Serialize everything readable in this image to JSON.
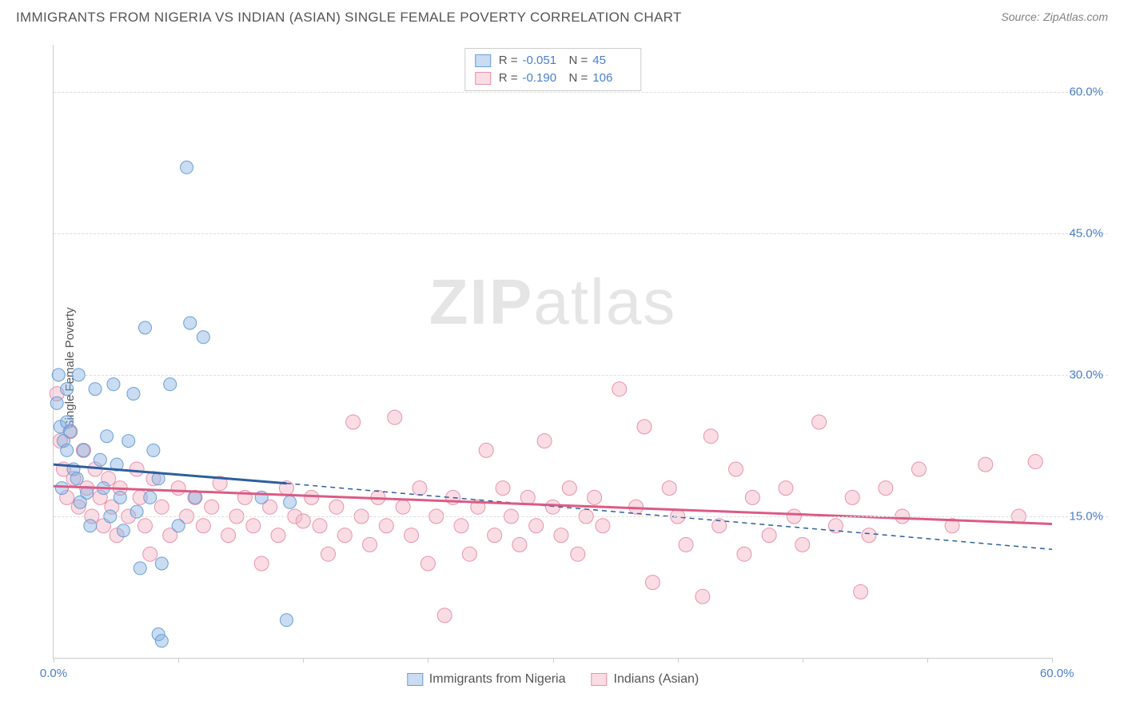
{
  "title": "IMMIGRANTS FROM NIGERIA VS INDIAN (ASIAN) SINGLE FEMALE POVERTY CORRELATION CHART",
  "source_label": "Source:",
  "source_name": "ZipAtlas.com",
  "y_axis_label": "Single Female Poverty",
  "watermark": {
    "bold": "ZIP",
    "light": "atlas"
  },
  "chart": {
    "type": "scatter",
    "xlim": [
      0,
      60
    ],
    "ylim": [
      0,
      65
    ],
    "x_ticks": [
      0,
      7.5,
      15,
      22.5,
      30,
      37.5,
      45,
      52.5,
      60
    ],
    "x_tick_labels": {
      "0": "0.0%",
      "60": "60.0%"
    },
    "y_ticks": [
      15,
      30,
      45,
      60
    ],
    "y_tick_labels": [
      "15.0%",
      "30.0%",
      "45.0%",
      "60.0%"
    ],
    "grid_color": "#dddddd",
    "axis_color": "#cccccc",
    "background_color": "#ffffff",
    "label_color": "#4a7ec9",
    "title_color": "#555555",
    "series": [
      {
        "name": "Immigrants from Nigeria",
        "key": "nigeria",
        "fill": "rgba(135,178,226,0.45)",
        "stroke": "#6a9fd4",
        "line_color": "#2d5f9e",
        "r_label": "R =",
        "r_value": "-0.051",
        "n_label": "N =",
        "n_value": "45",
        "trend_solid": {
          "x1": 0,
          "y1": 20.5,
          "x2": 14,
          "y2": 18.5
        },
        "trend_dash": {
          "x1": 14,
          "y1": 18.5,
          "x2": 60,
          "y2": 11.5
        },
        "marker_r": 8,
        "points": [
          [
            0.2,
            27.0
          ],
          [
            0.4,
            24.5
          ],
          [
            0.6,
            23.0
          ],
          [
            0.8,
            28.5
          ],
          [
            0.8,
            25.0
          ],
          [
            0.8,
            22.0
          ],
          [
            0.3,
            30.0
          ],
          [
            0.5,
            18.0
          ],
          [
            1.0,
            24.0
          ],
          [
            1.2,
            20.0
          ],
          [
            1.4,
            19.0
          ],
          [
            1.5,
            30.0
          ],
          [
            1.6,
            16.5
          ],
          [
            1.8,
            22.0
          ],
          [
            2.0,
            17.5
          ],
          [
            2.2,
            14.0
          ],
          [
            2.5,
            28.5
          ],
          [
            2.8,
            21.0
          ],
          [
            3.0,
            18.0
          ],
          [
            3.2,
            23.5
          ],
          [
            3.4,
            15.0
          ],
          [
            3.6,
            29.0
          ],
          [
            3.8,
            20.5
          ],
          [
            4.0,
            17.0
          ],
          [
            4.2,
            13.5
          ],
          [
            4.5,
            23.0
          ],
          [
            4.8,
            28.0
          ],
          [
            5.0,
            15.5
          ],
          [
            5.2,
            9.5
          ],
          [
            5.5,
            35.0
          ],
          [
            5.8,
            17.0
          ],
          [
            6.0,
            22.0
          ],
          [
            6.3,
            19.0
          ],
          [
            6.3,
            2.5
          ],
          [
            6.5,
            10.0
          ],
          [
            6.5,
            1.8
          ],
          [
            7.0,
            29.0
          ],
          [
            7.5,
            14.0
          ],
          [
            8.0,
            52.0
          ],
          [
            8.2,
            35.5
          ],
          [
            8.5,
            17.0
          ],
          [
            9.0,
            34.0
          ],
          [
            12.5,
            17.0
          ],
          [
            14.0,
            4.0
          ],
          [
            14.2,
            16.5
          ]
        ]
      },
      {
        "name": "Indians (Asian)",
        "key": "indians",
        "fill": "rgba(244,177,195,0.45)",
        "stroke": "#e793ab",
        "line_color": "#dc5b85",
        "r_label": "R =",
        "r_value": "-0.190",
        "n_label": "N =",
        "n_value": "106",
        "trend_solid": {
          "x1": 0,
          "y1": 18.2,
          "x2": 60,
          "y2": 14.2
        },
        "trend_dash": null,
        "marker_r": 9,
        "points": [
          [
            0.2,
            28.0
          ],
          [
            0.4,
            23.0
          ],
          [
            0.6,
            20.0
          ],
          [
            0.8,
            17.0
          ],
          [
            1.0,
            24.0
          ],
          [
            1.2,
            19.0
          ],
          [
            1.5,
            16.0
          ],
          [
            1.8,
            22.0
          ],
          [
            2.0,
            18.0
          ],
          [
            2.3,
            15.0
          ],
          [
            2.5,
            20.0
          ],
          [
            2.8,
            17.0
          ],
          [
            3.0,
            14.0
          ],
          [
            3.3,
            19.0
          ],
          [
            3.5,
            16.0
          ],
          [
            3.8,
            13.0
          ],
          [
            4.0,
            18.0
          ],
          [
            4.5,
            15.0
          ],
          [
            5.0,
            20.0
          ],
          [
            5.2,
            17.0
          ],
          [
            5.5,
            14.0
          ],
          [
            5.8,
            11.0
          ],
          [
            6.0,
            19.0
          ],
          [
            6.5,
            16.0
          ],
          [
            7.0,
            13.0
          ],
          [
            7.5,
            18.0
          ],
          [
            8.0,
            15.0
          ],
          [
            8.5,
            17.0
          ],
          [
            9.0,
            14.0
          ],
          [
            9.5,
            16.0
          ],
          [
            10.0,
            18.5
          ],
          [
            10.5,
            13.0
          ],
          [
            11.0,
            15.0
          ],
          [
            11.5,
            17.0
          ],
          [
            12.0,
            14.0
          ],
          [
            12.5,
            10.0
          ],
          [
            13.0,
            16.0
          ],
          [
            13.5,
            13.0
          ],
          [
            14.0,
            18.0
          ],
          [
            14.5,
            15.0
          ],
          [
            15.0,
            14.5
          ],
          [
            15.5,
            17.0
          ],
          [
            16.0,
            14.0
          ],
          [
            16.5,
            11.0
          ],
          [
            17.0,
            16.0
          ],
          [
            17.5,
            13.0
          ],
          [
            18.0,
            25.0
          ],
          [
            18.5,
            15.0
          ],
          [
            19.0,
            12.0
          ],
          [
            19.5,
            17.0
          ],
          [
            20.0,
            14.0
          ],
          [
            20.5,
            25.5
          ],
          [
            21.0,
            16.0
          ],
          [
            21.5,
            13.0
          ],
          [
            22.0,
            18.0
          ],
          [
            22.5,
            10.0
          ],
          [
            23.0,
            15.0
          ],
          [
            23.5,
            4.5
          ],
          [
            24.0,
            17.0
          ],
          [
            24.5,
            14.0
          ],
          [
            25.0,
            11.0
          ],
          [
            25.5,
            16.0
          ],
          [
            26.0,
            22.0
          ],
          [
            26.5,
            13.0
          ],
          [
            27.0,
            18.0
          ],
          [
            27.5,
            15.0
          ],
          [
            28.0,
            12.0
          ],
          [
            28.5,
            17.0
          ],
          [
            29.0,
            14.0
          ],
          [
            29.5,
            23.0
          ],
          [
            30.0,
            16.0
          ],
          [
            30.5,
            13.0
          ],
          [
            31.0,
            18.0
          ],
          [
            31.5,
            11.0
          ],
          [
            32.0,
            15.0
          ],
          [
            32.5,
            17.0
          ],
          [
            33.0,
            14.0
          ],
          [
            34.0,
            28.5
          ],
          [
            35.0,
            16.0
          ],
          [
            35.5,
            24.5
          ],
          [
            36.0,
            8.0
          ],
          [
            37.0,
            18.0
          ],
          [
            37.5,
            15.0
          ],
          [
            38.0,
            12.0
          ],
          [
            39.0,
            6.5
          ],
          [
            39.5,
            23.5
          ],
          [
            40.0,
            14.0
          ],
          [
            41.0,
            20.0
          ],
          [
            41.5,
            11.0
          ],
          [
            42.0,
            17.0
          ],
          [
            43.0,
            13.0
          ],
          [
            44.0,
            18.0
          ],
          [
            44.5,
            15.0
          ],
          [
            45.0,
            12.0
          ],
          [
            46.0,
            25.0
          ],
          [
            47.0,
            14.0
          ],
          [
            48.0,
            17.0
          ],
          [
            48.5,
            7.0
          ],
          [
            49.0,
            13.0
          ],
          [
            50.0,
            18.0
          ],
          [
            51.0,
            15.0
          ],
          [
            52.0,
            20.0
          ],
          [
            54.0,
            14.0
          ],
          [
            56.0,
            20.5
          ],
          [
            58.0,
            15.0
          ],
          [
            59.0,
            20.8
          ]
        ]
      }
    ]
  },
  "legend_bottom": [
    {
      "label": "Immigrants from Nigeria",
      "fill": "rgba(135,178,226,0.55)",
      "stroke": "#6a9fd4"
    },
    {
      "label": "Indians (Asian)",
      "fill": "rgba(244,177,195,0.55)",
      "stroke": "#e793ab"
    }
  ]
}
